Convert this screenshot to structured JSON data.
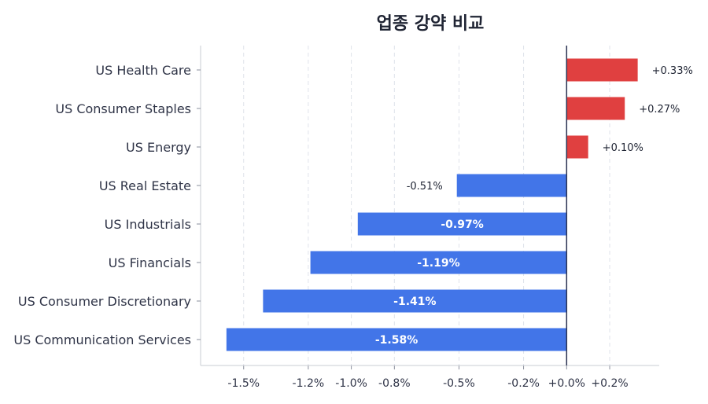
{
  "chart_data": {
    "type": "bar",
    "orientation": "horizontal",
    "title": "업종 강약 비교",
    "categories": [
      "US Health Care",
      "US Consumer Staples",
      "US Energy",
      "US Real Estate",
      "US Industrials",
      "US Financials",
      "US Consumer Discretionary",
      "US Communication Services"
    ],
    "values": [
      0.33,
      0.27,
      0.1,
      -0.51,
      -0.97,
      -1.19,
      -1.41,
      -1.58
    ],
    "value_labels": [
      "+0.33%",
      "+0.27%",
      "+0.10%",
      "-0.51%",
      "-0.97%",
      "-1.19%",
      "-1.41%",
      "-1.58%"
    ],
    "xticks": [
      -1.5,
      -1.2,
      -1.0,
      -0.8,
      -0.5,
      -0.2,
      0.0,
      0.2
    ],
    "xtick_labels": [
      "-1.5%",
      "-1.2%",
      "-1.0%",
      "-0.8%",
      "-0.5%",
      "-0.2%",
      "+0.0%",
      "+0.2%"
    ],
    "xlim": [
      -1.7,
      0.43
    ],
    "grid": "vertical dashed",
    "colors": {
      "positive": "#e04040",
      "negative": "#4275e8",
      "zero_line": "#2b3352"
    }
  }
}
